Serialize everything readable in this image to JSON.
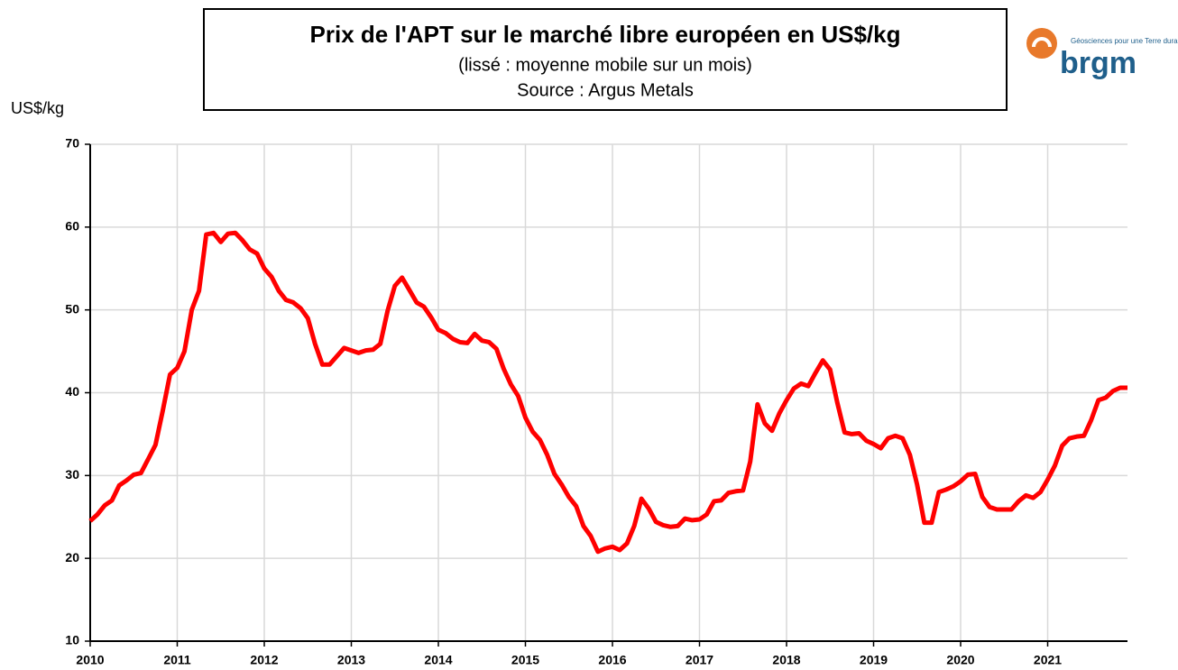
{
  "chart_data": {
    "type": "line",
    "title": "Prix de l'APT sur le marché libre européen en US$/kg",
    "subtitle": "(lissé : moyenne mobile sur un mois)",
    "source": "Source : Argus Metals",
    "y_label": "US$/kg",
    "logo": {
      "name": "brgm",
      "tagline": "Géosciences pour une Terre durable"
    },
    "xlim": [
      2010,
      2021.917
    ],
    "xticks": [
      2010,
      2011,
      2012,
      2013,
      2014,
      2015,
      2016,
      2017,
      2018,
      2019,
      2020,
      2021
    ],
    "ylim": [
      10,
      70
    ],
    "yticks": [
      10,
      20,
      30,
      40,
      50,
      60,
      70
    ],
    "grid": true,
    "x": [
      2010,
      2010.083,
      2010.167,
      2010.25,
      2010.333,
      2010.417,
      2010.5,
      2010.583,
      2010.667,
      2010.75,
      2010.833,
      2010.917,
      2011,
      2011.083,
      2011.167,
      2011.25,
      2011.333,
      2011.417,
      2011.5,
      2011.583,
      2011.667,
      2011.75,
      2011.833,
      2011.917,
      2012,
      2012.083,
      2012.167,
      2012.25,
      2012.333,
      2012.417,
      2012.5,
      2012.583,
      2012.667,
      2012.75,
      2012.833,
      2012.917,
      2013,
      2013.083,
      2013.167,
      2013.25,
      2013.333,
      2013.417,
      2013.5,
      2013.583,
      2013.667,
      2013.75,
      2013.833,
      2013.917,
      2014,
      2014.083,
      2014.167,
      2014.25,
      2014.333,
      2014.417,
      2014.5,
      2014.583,
      2014.667,
      2014.75,
      2014.833,
      2014.917,
      2015,
      2015.083,
      2015.167,
      2015.25,
      2015.333,
      2015.417,
      2015.5,
      2015.583,
      2015.667,
      2015.75,
      2015.833,
      2015.917,
      2016,
      2016.083,
      2016.167,
      2016.25,
      2016.333,
      2016.417,
      2016.5,
      2016.583,
      2016.667,
      2016.75,
      2016.833,
      2016.917,
      2017,
      2017.083,
      2017.167,
      2017.25,
      2017.333,
      2017.417,
      2017.5,
      2017.583,
      2017.667,
      2017.75,
      2017.833,
      2017.917,
      2018,
      2018.083,
      2018.167,
      2018.25,
      2018.333,
      2018.417,
      2018.5,
      2018.583,
      2018.667,
      2018.75,
      2018.833,
      2018.917,
      2019,
      2019.083,
      2019.167,
      2019.25,
      2019.333,
      2019.417,
      2019.5,
      2019.583,
      2019.667,
      2019.75,
      2019.833,
      2019.917,
      2020,
      2020.083,
      2020.167,
      2020.25,
      2020.333,
      2020.417,
      2020.5,
      2020.583,
      2020.667,
      2020.75,
      2020.833,
      2020.917,
      2021,
      2021.083,
      2021.167,
      2021.25,
      2021.333,
      2021.417,
      2021.5,
      2021.583,
      2021.667,
      2021.75,
      2021.833,
      2021.917
    ],
    "series": [
      {
        "name": "APT",
        "color": "#ff0000",
        "values": [
          24.5,
          25.3,
          26.4,
          27,
          28.8,
          29.4,
          30.1,
          30.3,
          32,
          33.7,
          37.8,
          42.2,
          43,
          45,
          50,
          52.3,
          59.1,
          59.3,
          58.2,
          59.2,
          59.3,
          58.4,
          57.3,
          56.8,
          55,
          54,
          52.3,
          51.2,
          50.9,
          50.2,
          49,
          45.9,
          43.4,
          43.4,
          44.4,
          45.4,
          45.1,
          44.8,
          45.1,
          45.2,
          45.9,
          49.9,
          52.9,
          53.9,
          52.4,
          50.9,
          50.4,
          49.1,
          47.6,
          47.2,
          46.5,
          46.1,
          46,
          47.1,
          46.3,
          46.1,
          45.3,
          42.9,
          41,
          39.6,
          37,
          35.3,
          34.3,
          32.5,
          30.2,
          28.9,
          27.4,
          26.3,
          23.9,
          22.7,
          20.8,
          21.2,
          21.4,
          21,
          21.8,
          23.9,
          27.2,
          26,
          24.4,
          24,
          23.8,
          23.9,
          24.8,
          24.6,
          24.7,
          25.3,
          26.9,
          27,
          27.9,
          28.1,
          28.2,
          31.7,
          38.6,
          36.3,
          35.4,
          37.5,
          39.1,
          40.5,
          41.1,
          40.8,
          42.4,
          43.9,
          42.8,
          38.8,
          35.2,
          35,
          35.1,
          34.2,
          33.8,
          33.3,
          34.5,
          34.8,
          34.5,
          32.5,
          28.9,
          24.3,
          24.3,
          28,
          28.3,
          28.7,
          29.3,
          30.1,
          30.2,
          27.4,
          26.2,
          25.9,
          25.9,
          25.9,
          26.9,
          27.6,
          27.3,
          28,
          29.5,
          31.2,
          33.6,
          34.5,
          34.7,
          34.8,
          36.7,
          39.1,
          39.4,
          40.2,
          40.6,
          40.6
        ]
      }
    ]
  }
}
